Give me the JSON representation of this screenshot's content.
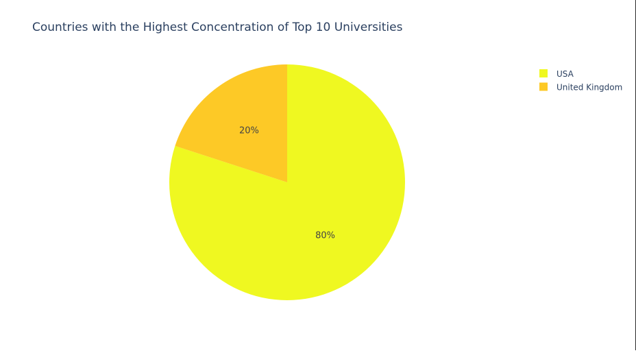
{
  "chart_data": {
    "type": "pie",
    "title": "Countries with the Highest Concentration of Top 10 Universities",
    "labels": [
      "USA",
      "United Kingdom"
    ],
    "values": [
      80,
      20
    ],
    "text_labels": [
      "80%",
      "20%"
    ],
    "colors": [
      "#EFF821",
      "#FDC926"
    ],
    "direction": "clockwise",
    "start_angle_deg": 90,
    "legend_position": "top-right",
    "showlegend": true
  },
  "colors": {
    "title": "#2a3f5f",
    "text": "#444444",
    "background": "#ffffff"
  }
}
